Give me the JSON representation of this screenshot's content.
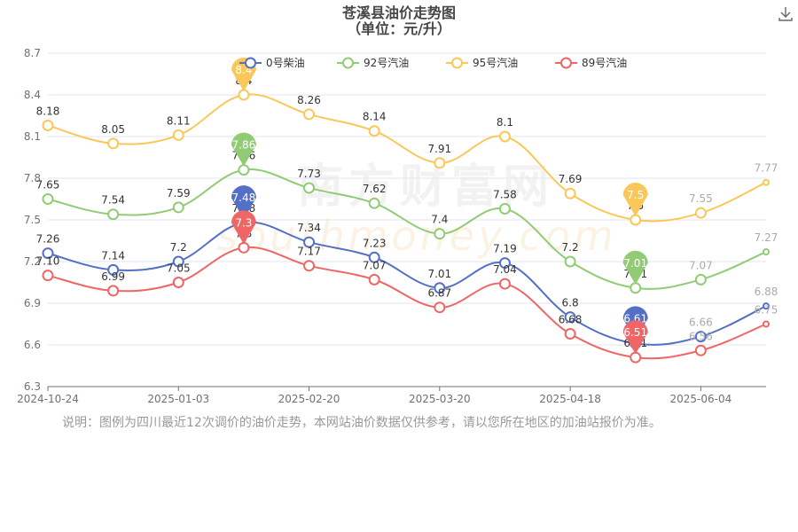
{
  "header": {
    "title": "苍溪县油价走势图",
    "subtitle": "（单位：元/升）"
  },
  "toolbar": {
    "download_icon": "download-icon"
  },
  "watermark": {
    "cn": "南方财富网",
    "en": "southmoney.com"
  },
  "note": "说明：图例为四川最近12次调价的油价走势，本网站油价数据仅供参考，请以您所在地区的加油站报价为准。",
  "chart_data": {
    "type": "line",
    "x_ticks": [
      "2024-10-24",
      "2025-01-03",
      "2025-02-20",
      "2025-03-20",
      "2025-04-18",
      "2025-06-04"
    ],
    "ylim": [
      6.3,
      8.7
    ],
    "y_ticks": [
      "6.3",
      "6.6",
      "6.9",
      "7.2",
      "7.5",
      "7.8",
      "8.1",
      "8.4",
      "8.7"
    ],
    "grid": "horizontal",
    "legend_position": "top",
    "series": [
      {
        "name": "0号柴油",
        "color": "#5470c6",
        "values": [
          7.26,
          7.14,
          7.2,
          7.48,
          7.34,
          7.23,
          7.01,
          7.19,
          6.8,
          6.61,
          6.66,
          6.88
        ],
        "labels": [
          "7.26",
          "7.14",
          "7.2",
          "7.48",
          "7.34",
          "7.23",
          "7.01",
          "7.19",
          "6.8",
          "6.61",
          "6.66",
          "6.88"
        ],
        "max_label": "7.48",
        "min_label": "6.61"
      },
      {
        "name": "92号汽油",
        "color": "#91cc75",
        "values": [
          7.65,
          7.54,
          7.59,
          7.86,
          7.73,
          7.62,
          7.4,
          7.58,
          7.2,
          7.01,
          7.07,
          7.27
        ],
        "labels": [
          "7.65",
          "7.54",
          "7.59",
          "7.86",
          "7.73",
          "7.62",
          "7.4",
          "7.58",
          "7.2",
          "7.01",
          "7.07",
          "7.27"
        ],
        "max_label": "7.86",
        "min_label": "7.01"
      },
      {
        "name": "95号汽油",
        "color": "#fac858",
        "values": [
          8.18,
          8.05,
          8.11,
          8.4,
          8.26,
          8.14,
          7.91,
          8.1,
          7.69,
          7.5,
          7.55,
          7.77
        ],
        "labels": [
          "8.18",
          "8.05",
          "8.11",
          "8.4",
          "8.26",
          "8.14",
          "7.91",
          "8.1",
          "7.69",
          "7.5",
          "7.55",
          "7.77"
        ],
        "max_label": "8.4",
        "min_label": "7.5"
      },
      {
        "name": "89号汽油",
        "color": "#ee6666",
        "values": [
          7.1,
          6.99,
          7.05,
          7.3,
          7.17,
          7.07,
          6.87,
          7.04,
          6.68,
          6.51,
          6.56,
          6.75
        ],
        "labels": [
          "7.10",
          "6.99",
          "7.05",
          "7.3",
          "7.17",
          "7.07",
          "6.87",
          "7.04",
          "6.68",
          "6.51",
          "6.56",
          "6.75"
        ],
        "max_label": "7.3",
        "min_label": "6.51"
      }
    ]
  }
}
